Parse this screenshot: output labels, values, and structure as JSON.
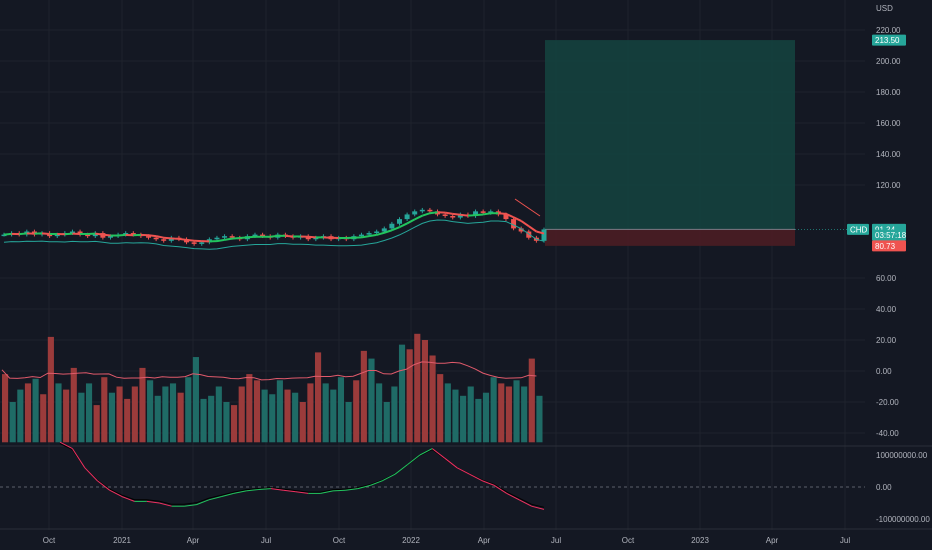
{
  "colors": {
    "background": "#141823",
    "grid": "#1e222d",
    "up": "#26a69a",
    "down": "#ef5350",
    "text": "#b2b5be",
    "target_zone": "#14443f",
    "stop_zone": "#4a1d24"
  },
  "price_axis": {
    "currency": "USD",
    "ticks": [
      "220.00",
      "200.00",
      "180.00",
      "160.00",
      "140.00",
      "120.00",
      "60.00",
      "40.00",
      "20.00",
      "0.00",
      "-20.00",
      "-40.00"
    ],
    "tags": [
      {
        "label": "213.50",
        "value": 213.5,
        "color": "#26a69a"
      },
      {
        "label": "91.35",
        "value": 91.35,
        "color": "#4a4f5c"
      },
      {
        "label": "91.34",
        "value": 91.34,
        "color": "#26a69a"
      },
      {
        "label": "03:57:18",
        "value": 87.7,
        "color": "#26a69a"
      },
      {
        "label": "80.73",
        "value": 80.73,
        "color": "#ef5350"
      }
    ],
    "symbol_badge": "CHD"
  },
  "oscillator_axis": {
    "ticks": [
      "100000000.00",
      "0.00",
      "-100000000.00"
    ]
  },
  "time_axis": {
    "labels": [
      "Oct",
      "2021",
      "Apr",
      "Jul",
      "Oct",
      "2022",
      "Apr",
      "Jul",
      "Oct",
      "2023",
      "Apr",
      "Jul"
    ]
  },
  "chart_data": {
    "type": "candlestick",
    "last_price": 91.34,
    "entry_price": 91.35,
    "target_price": 213.5,
    "stop_price": 80.73,
    "close_series": [
      88,
      89,
      88,
      90,
      88,
      89,
      87,
      88,
      89,
      90,
      88,
      87,
      89,
      86,
      87,
      88,
      89,
      88,
      87,
      86,
      85,
      84,
      86,
      85,
      83,
      82,
      83,
      85,
      86,
      87,
      86,
      85,
      87,
      88,
      87,
      86,
      88,
      87,
      86,
      87,
      85,
      86,
      87,
      85,
      86,
      85,
      87,
      88,
      89,
      90,
      92,
      95,
      98,
      101,
      103,
      104,
      103,
      101,
      100,
      99,
      101,
      100,
      103,
      102,
      103,
      101,
      98,
      92,
      90,
      86,
      84,
      91.34
    ],
    "momentum_histogram": [
      {
        "v": -2,
        "dir": "down"
      },
      {
        "v": -20,
        "dir": "up"
      },
      {
        "v": -12,
        "dir": "up"
      },
      {
        "v": -8,
        "dir": "down"
      },
      {
        "v": -5,
        "dir": "up"
      },
      {
        "v": -15,
        "dir": "down"
      },
      {
        "v": 22,
        "dir": "down"
      },
      {
        "v": -8,
        "dir": "up"
      },
      {
        "v": -12,
        "dir": "down"
      },
      {
        "v": 2,
        "dir": "down"
      },
      {
        "v": -14,
        "dir": "up"
      },
      {
        "v": -8,
        "dir": "up"
      },
      {
        "v": -22,
        "dir": "down"
      },
      {
        "v": -4,
        "dir": "down"
      },
      {
        "v": -14,
        "dir": "up"
      },
      {
        "v": -10,
        "dir": "down"
      },
      {
        "v": -18,
        "dir": "down"
      },
      {
        "v": -10,
        "dir": "down"
      },
      {
        "v": 2,
        "dir": "down"
      },
      {
        "v": -6,
        "dir": "up"
      },
      {
        "v": -16,
        "dir": "up"
      },
      {
        "v": -10,
        "dir": "up"
      },
      {
        "v": -8,
        "dir": "up"
      },
      {
        "v": -14,
        "dir": "down"
      },
      {
        "v": -4,
        "dir": "up"
      },
      {
        "v": 9,
        "dir": "up"
      },
      {
        "v": -18,
        "dir": "up"
      },
      {
        "v": -16,
        "dir": "up"
      },
      {
        "v": -10,
        "dir": "up"
      },
      {
        "v": -20,
        "dir": "up"
      },
      {
        "v": -22,
        "dir": "down"
      },
      {
        "v": -10,
        "dir": "down"
      },
      {
        "v": -2,
        "dir": "down"
      },
      {
        "v": -6,
        "dir": "down"
      },
      {
        "v": -12,
        "dir": "up"
      },
      {
        "v": -15,
        "dir": "up"
      },
      {
        "v": -6,
        "dir": "up"
      },
      {
        "v": -12,
        "dir": "down"
      },
      {
        "v": -14,
        "dir": "up"
      },
      {
        "v": -20,
        "dir": "down"
      },
      {
        "v": -8,
        "dir": "down"
      },
      {
        "v": 12,
        "dir": "down"
      },
      {
        "v": -8,
        "dir": "up"
      },
      {
        "v": -12,
        "dir": "up"
      },
      {
        "v": -4,
        "dir": "up"
      },
      {
        "v": -20,
        "dir": "up"
      },
      {
        "v": -6,
        "dir": "down"
      },
      {
        "v": 13,
        "dir": "down"
      },
      {
        "v": 8,
        "dir": "up"
      },
      {
        "v": -8,
        "dir": "up"
      },
      {
        "v": -20,
        "dir": "up"
      },
      {
        "v": -10,
        "dir": "up"
      },
      {
        "v": 17,
        "dir": "up"
      },
      {
        "v": 14,
        "dir": "down"
      },
      {
        "v": 24,
        "dir": "down"
      },
      {
        "v": 20,
        "dir": "down"
      },
      {
        "v": 10,
        "dir": "down"
      },
      {
        "v": -2,
        "dir": "down"
      },
      {
        "v": -8,
        "dir": "up"
      },
      {
        "v": -12,
        "dir": "up"
      },
      {
        "v": -16,
        "dir": "up"
      },
      {
        "v": -10,
        "dir": "up"
      },
      {
        "v": -18,
        "dir": "up"
      },
      {
        "v": -14,
        "dir": "up"
      },
      {
        "v": -4,
        "dir": "up"
      },
      {
        "v": -8,
        "dir": "down"
      },
      {
        "v": -10,
        "dir": "down"
      },
      {
        "v": -6,
        "dir": "up"
      },
      {
        "v": -10,
        "dir": "up"
      },
      {
        "v": 8,
        "dir": "down"
      },
      {
        "v": -16,
        "dir": "up"
      }
    ]
  }
}
